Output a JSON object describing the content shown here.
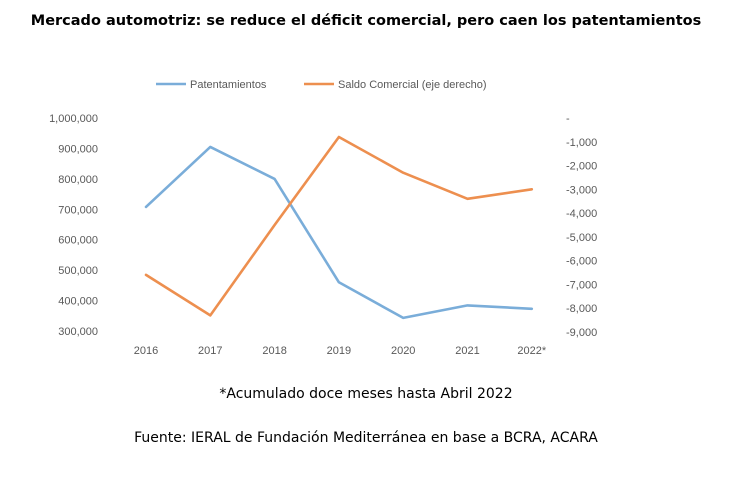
{
  "chart_data": {
    "type": "line",
    "title": "Mercado automotriz: se reduce el déficit comercial, pero caen los patentamientos",
    "categories": [
      "2016",
      "2017",
      "2018",
      "2019",
      "2020",
      "2021",
      "2022*"
    ],
    "series": [
      {
        "name": "Patentamientos",
        "axis": "left",
        "color": "#7aadd9",
        "values": [
          708000,
          905000,
          800000,
          460000,
          343000,
          384000,
          373000
        ]
      },
      {
        "name": "Saldo Comercial (eje derecho)",
        "axis": "right",
        "color": "#ed8f4f",
        "values": [
          -6600,
          -8300,
          -4500,
          -800,
          -2300,
          -3400,
          -3000
        ]
      }
    ],
    "y_left": {
      "min": 300000,
      "max": 1000000,
      "step": 100000,
      "tick_labels": [
        "300,000",
        "400,000",
        "500,000",
        "600,000",
        "700,000",
        "800,000",
        "900,000",
        "1,000,000"
      ]
    },
    "y_right": {
      "min": -9000,
      "max": 0,
      "step": 1000,
      "tick_labels": [
        "-9,000",
        "-8,000",
        "-7,000",
        "-6,000",
        "-5,000",
        "-4,000",
        "-3,000",
        "-2,000",
        "-1,000",
        "-"
      ]
    },
    "legend_position": "top",
    "grid": false
  },
  "footnote": "*Acumulado doce meses hasta Abril 2022",
  "source": "Fuente: IERAL de Fundación Mediterránea en base a BCRA, ACARA"
}
